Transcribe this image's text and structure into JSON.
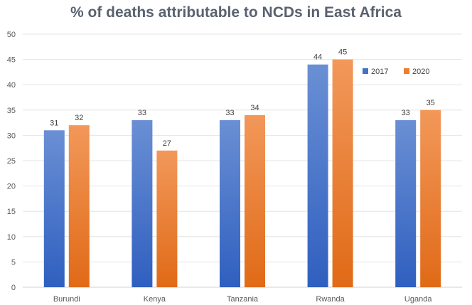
{
  "chart_data": {
    "type": "bar",
    "title": "% of deaths attributable to NCDs in East Africa",
    "xlabel": "",
    "ylabel": "",
    "categories": [
      "Burundi",
      "Kenya",
      "Tanzania",
      "Rwanda",
      "Uganda"
    ],
    "series": [
      {
        "name": "2017",
        "values": [
          31,
          33,
          33,
          44,
          33
        ],
        "color": "#4472c4"
      },
      {
        "name": "2020",
        "values": [
          32,
          27,
          34,
          45,
          35
        ],
        "color": "#ed7d31"
      }
    ],
    "ylim": [
      0,
      50
    ],
    "yticks": [
      0,
      5,
      10,
      15,
      20,
      25,
      30,
      35,
      40,
      45,
      50
    ],
    "grid": true,
    "legend_position": "top-right",
    "data_labels": true
  }
}
